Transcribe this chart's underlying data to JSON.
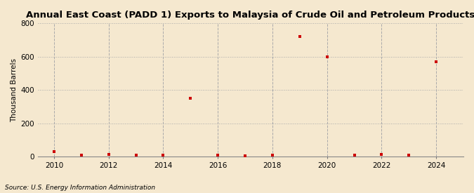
{
  "title": "Annual East Coast (PADD 1) Exports to Malaysia of Crude Oil and Petroleum Products",
  "ylabel": "Thousand Barrels",
  "source": "Source: U.S. Energy Information Administration",
  "background_color": "#f5e8cf",
  "years": [
    2010,
    2011,
    2012,
    2013,
    2014,
    2015,
    2016,
    2017,
    2018,
    2019,
    2020,
    2021,
    2022,
    2023,
    2024
  ],
  "values": [
    30,
    8,
    15,
    10,
    8,
    350,
    8,
    5,
    8,
    720,
    600,
    8,
    12,
    10,
    570
  ],
  "marker_color": "#cc0000",
  "marker": "s",
  "marker_size": 3.5,
  "xlim": [
    2009.4,
    2025.0
  ],
  "ylim": [
    0,
    800
  ],
  "yticks": [
    0,
    200,
    400,
    600,
    800
  ],
  "xticks": [
    2010,
    2012,
    2014,
    2016,
    2018,
    2020,
    2022,
    2024
  ],
  "hgrid_color": "#aaaaaa",
  "hgrid_style": "dotted",
  "vgrid_color": "#aaaaaa",
  "vgrid_style": "dashed",
  "title_fontsize": 9.5,
  "label_fontsize": 7.5,
  "tick_fontsize": 7.5,
  "source_fontsize": 6.5
}
